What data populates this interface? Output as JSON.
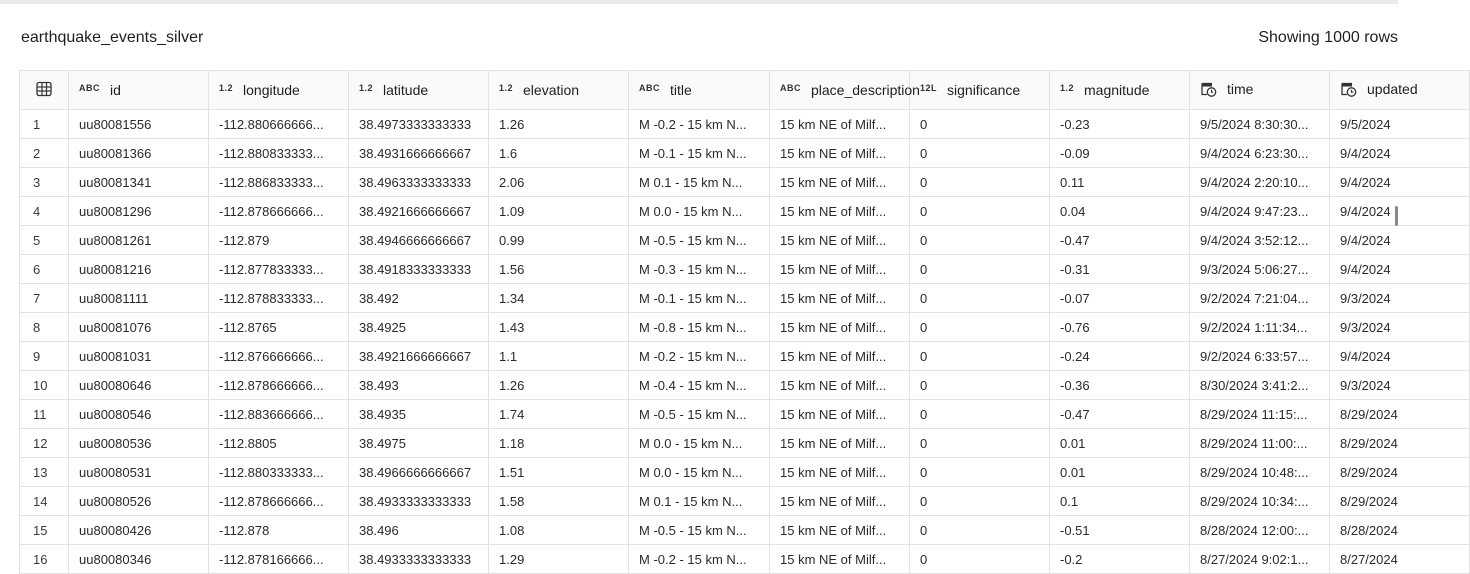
{
  "table_title": "earthquake_events_silver",
  "row_count_label": "Showing 1000 rows",
  "columns": [
    {
      "name": "id",
      "type": "ABC",
      "icon": "string-type-icon"
    },
    {
      "name": "longitude",
      "type": "1.2",
      "icon": "decimal-type-icon"
    },
    {
      "name": "latitude",
      "type": "1.2",
      "icon": "decimal-type-icon"
    },
    {
      "name": "elevation",
      "type": "1.2",
      "icon": "decimal-type-icon"
    },
    {
      "name": "title",
      "type": "ABC",
      "icon": "string-type-icon"
    },
    {
      "name": "place_description",
      "type": "ABC",
      "icon": "string-type-icon"
    },
    {
      "name": "significance",
      "type": "12L",
      "icon": "long-type-icon"
    },
    {
      "name": "magnitude",
      "type": "1.2",
      "icon": "decimal-type-icon"
    },
    {
      "name": "time",
      "type": "",
      "icon": "timestamp-type-icon"
    },
    {
      "name": "updated",
      "type": "",
      "icon": "timestamp-type-icon"
    }
  ],
  "rows": [
    [
      "1",
      "uu80081556",
      "-112.880666666...",
      "38.4973333333333",
      "1.26",
      "M -0.2 - 15 km N...",
      "15 km NE of Milf...",
      "0",
      "-0.23",
      "9/5/2024 8:30:30...",
      "9/5/2024"
    ],
    [
      "2",
      "uu80081366",
      "-112.880833333...",
      "38.4931666666667",
      "1.6",
      "M -0.1 - 15 km N...",
      "15 km NE of Milf...",
      "0",
      "-0.09",
      "9/4/2024 6:23:30...",
      "9/4/2024"
    ],
    [
      "3",
      "uu80081341",
      "-112.886833333...",
      "38.4963333333333",
      "2.06",
      "M 0.1 - 15 km N...",
      "15 km NE of Milf...",
      "0",
      "0.11",
      "9/4/2024 2:20:10...",
      "9/4/2024"
    ],
    [
      "4",
      "uu80081296",
      "-112.878666666...",
      "38.4921666666667",
      "1.09",
      "M 0.0 - 15 km N...",
      "15 km NE of Milf...",
      "0",
      "0.04",
      "9/4/2024 9:47:23...",
      "9/4/2024"
    ],
    [
      "5",
      "uu80081261",
      "-112.879",
      "38.4946666666667",
      "0.99",
      "M -0.5 - 15 km N...",
      "15 km NE of Milf...",
      "0",
      "-0.47",
      "9/4/2024 3:52:12...",
      "9/4/2024"
    ],
    [
      "6",
      "uu80081216",
      "-112.877833333...",
      "38.4918333333333",
      "1.56",
      "M -0.3 - 15 km N...",
      "15 km NE of Milf...",
      "0",
      "-0.31",
      "9/3/2024 5:06:27...",
      "9/4/2024"
    ],
    [
      "7",
      "uu80081111",
      "-112.878833333...",
      "38.492",
      "1.34",
      "M -0.1 - 15 km N...",
      "15 km NE of Milf...",
      "0",
      "-0.07",
      "9/2/2024 7:21:04...",
      "9/3/2024"
    ],
    [
      "8",
      "uu80081076",
      "-112.8765",
      "38.4925",
      "1.43",
      "M -0.8 - 15 km N...",
      "15 km NE of Milf...",
      "0",
      "-0.76",
      "9/2/2024 1:11:34...",
      "9/3/2024"
    ],
    [
      "9",
      "uu80081031",
      "-112.876666666...",
      "38.4921666666667",
      "1.1",
      "M -0.2 - 15 km N...",
      "15 km NE of Milf...",
      "0",
      "-0.24",
      "9/2/2024 6:33:57...",
      "9/4/2024"
    ],
    [
      "10",
      "uu80080646",
      "-112.878666666...",
      "38.493",
      "1.26",
      "M -0.4 - 15 km N...",
      "15 km NE of Milf...",
      "0",
      "-0.36",
      "8/30/2024 3:41:2...",
      "9/3/2024"
    ],
    [
      "11",
      "uu80080546",
      "-112.883666666...",
      "38.4935",
      "1.74",
      "M -0.5 - 15 km N...",
      "15 km NE of Milf...",
      "0",
      "-0.47",
      "8/29/2024 11:15:...",
      "8/29/2024"
    ],
    [
      "12",
      "uu80080536",
      "-112.8805",
      "38.4975",
      "1.18",
      "M 0.0 - 15 km N...",
      "15 km NE of Milf...",
      "0",
      "0.01",
      "8/29/2024 11:00:...",
      "8/29/2024"
    ],
    [
      "13",
      "uu80080531",
      "-112.880333333...",
      "38.4966666666667",
      "1.51",
      "M 0.0 - 15 km N...",
      "15 km NE of Milf...",
      "0",
      "0.01",
      "8/29/2024 10:48:...",
      "8/29/2024"
    ],
    [
      "14",
      "uu80080526",
      "-112.878666666...",
      "38.4933333333333",
      "1.58",
      "M 0.1 - 15 km N...",
      "15 km NE of Milf...",
      "0",
      "0.1",
      "8/29/2024 10:34:...",
      "8/29/2024"
    ],
    [
      "15",
      "uu80080426",
      "-112.878",
      "38.496",
      "1.08",
      "M -0.5 - 15 km N...",
      "15 km NE of Milf...",
      "0",
      "-0.51",
      "8/28/2024 12:00:...",
      "8/28/2024"
    ],
    [
      "16",
      "uu80080346",
      "-112.878166666...",
      "38.4933333333333",
      "1.29",
      "M -0.2 - 15 km N...",
      "15 km NE of Milf...",
      "0",
      "-0.2",
      "8/27/2024 9:02:1...",
      "8/27/2024"
    ]
  ]
}
